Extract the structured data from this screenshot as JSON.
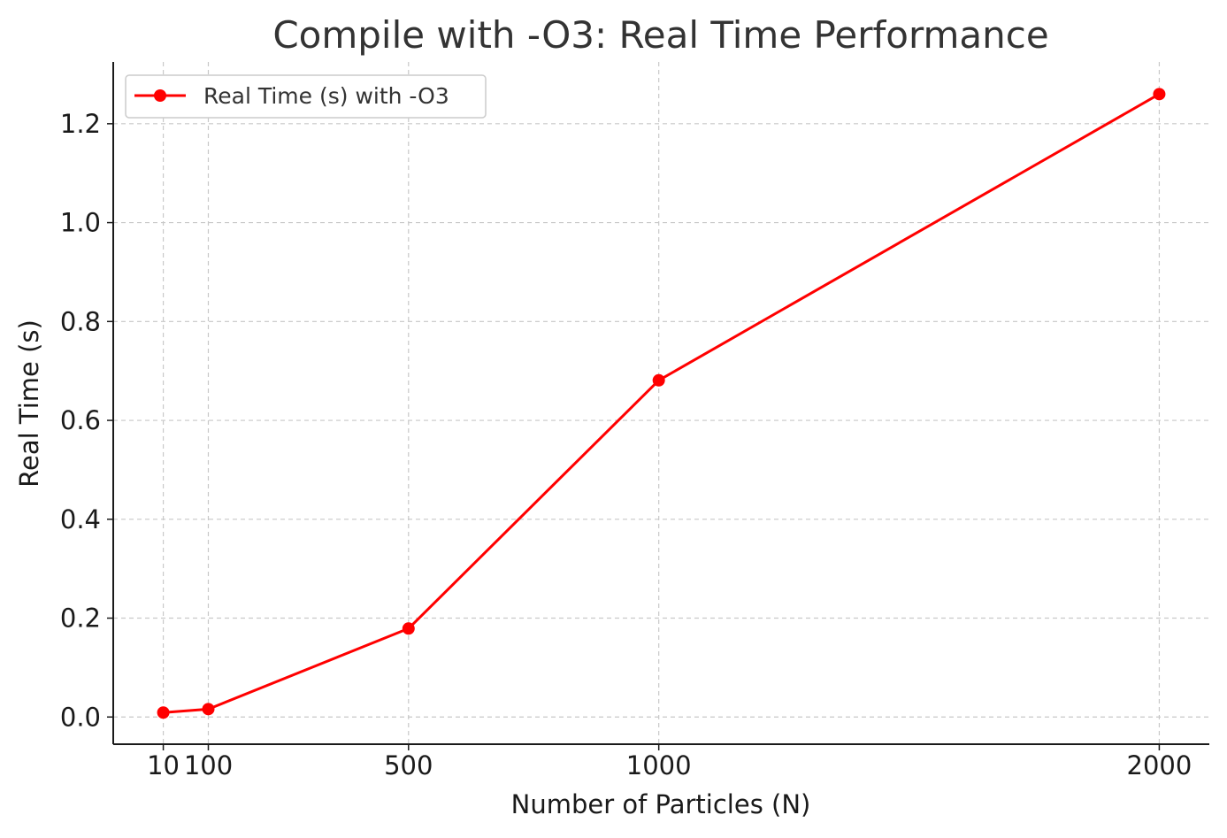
{
  "chart_data": {
    "type": "line",
    "title": "Compile with -O3: Real Time Performance",
    "xlabel": "Number of Particles (N)",
    "ylabel": "Real Time (s)",
    "x": [
      10,
      100,
      500,
      1000,
      2000
    ],
    "x_tick_labels": [
      "10",
      "100",
      "500",
      "1000",
      "2000"
    ],
    "y_ticks": [
      0.0,
      0.2,
      0.4,
      0.6,
      0.8,
      1.0,
      1.2
    ],
    "y_tick_labels": [
      "0.0",
      "0.2",
      "0.4",
      "0.6",
      "0.8",
      "1.0",
      "1.2"
    ],
    "xlim": [
      -90,
      2100
    ],
    "ylim": [
      -0.055,
      1.325
    ],
    "grid": true,
    "legend_position": "top-left",
    "series": [
      {
        "name": "Real Time (s) with -O3",
        "color": "#ff0000",
        "marker": "circle",
        "values": [
          0.009,
          0.016,
          0.179,
          0.681,
          1.26
        ]
      }
    ]
  }
}
